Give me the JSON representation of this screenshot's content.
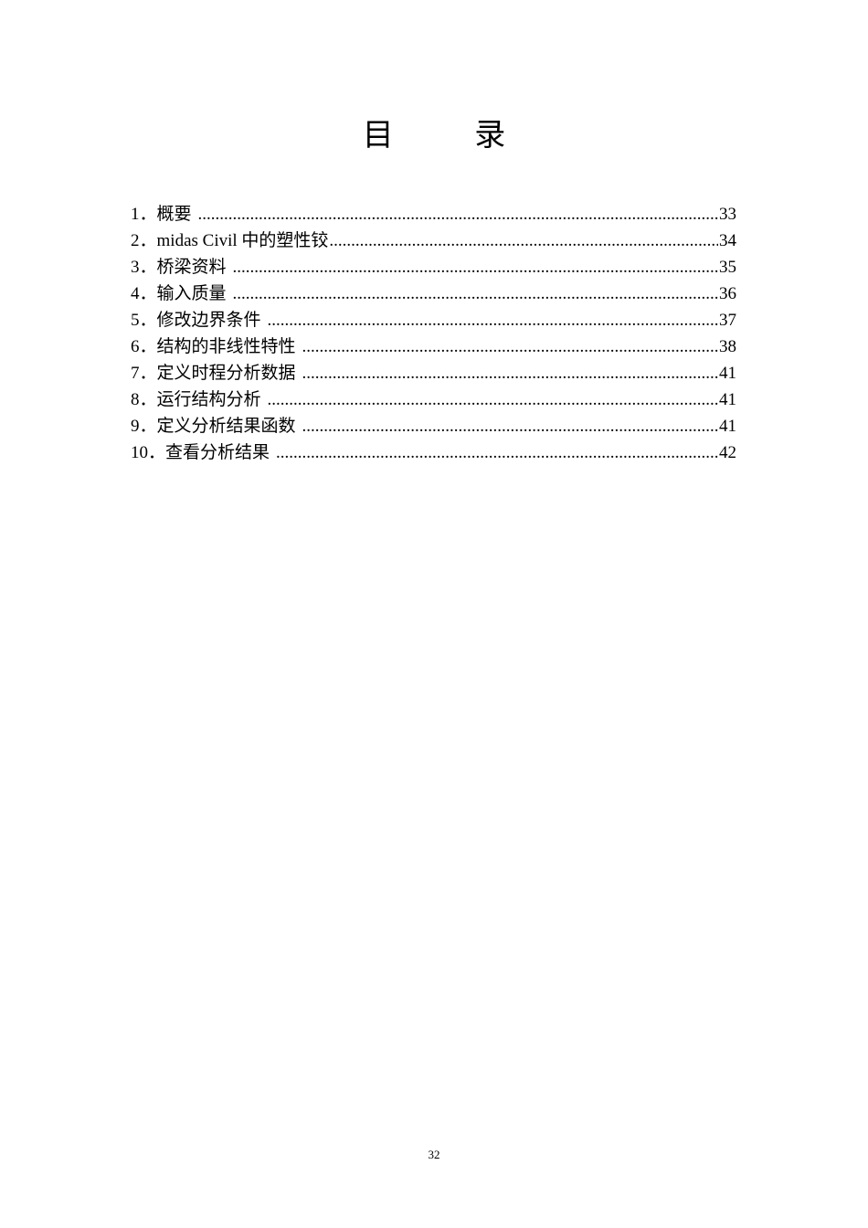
{
  "title": {
    "char1": "目",
    "char2": "录"
  },
  "toc": [
    {
      "num": "1．",
      "label": "概要",
      "page": "33"
    },
    {
      "num": "2．",
      "label": "midas Civil 中的塑性铰",
      "page": "34"
    },
    {
      "num": "3．",
      "label": "桥梁资料",
      "page": "35"
    },
    {
      "num": "4．",
      "label": "输入质量",
      "page": "36"
    },
    {
      "num": "5．",
      "label": "修改边界条件",
      "page": "37"
    },
    {
      "num": "6．",
      "label": "结构的非线性特性",
      "page": "38"
    },
    {
      "num": "7．",
      "label": "定义时程分析数据",
      "page": "41"
    },
    {
      "num": "8．",
      "label": "运行结构分析",
      "page": "41"
    },
    {
      "num": "9．",
      "label": "定义分析结果函数",
      "page": "41"
    },
    {
      "num": "10．",
      "label": "查看分析结果",
      "page": "42"
    }
  ],
  "footer": {
    "page_number": "32"
  }
}
